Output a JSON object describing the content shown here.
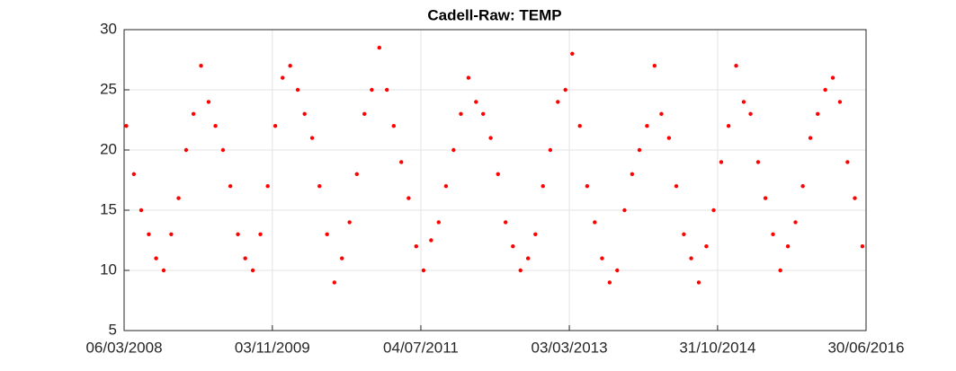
{
  "chart_data": {
    "type": "scatter",
    "title": "Cadell-Raw: TEMP",
    "x": [
      "2008-03-15",
      "2008-04-15",
      "2008-05-15",
      "2008-06-15",
      "2008-07-15",
      "2008-08-15",
      "2008-09-15",
      "2008-10-15",
      "2008-11-15",
      "2008-12-15",
      "2009-01-15",
      "2009-02-15",
      "2009-03-15",
      "2009-04-15",
      "2009-05-15",
      "2009-06-15",
      "2009-07-15",
      "2009-08-15",
      "2009-09-15",
      "2009-10-15",
      "2009-11-15",
      "2009-12-15",
      "2010-01-15",
      "2010-02-15",
      "2010-03-15",
      "2010-04-15",
      "2010-05-15",
      "2010-06-15",
      "2010-07-15",
      "2010-08-15",
      "2010-09-15",
      "2010-10-15",
      "2010-11-15",
      "2010-12-15",
      "2011-01-15",
      "2011-02-15",
      "2011-03-15",
      "2011-04-15",
      "2011-05-15",
      "2011-06-15",
      "2011-07-15",
      "2011-08-15",
      "2011-09-15",
      "2011-10-15",
      "2011-11-15",
      "2011-12-15",
      "2012-01-15",
      "2012-02-15",
      "2012-03-15",
      "2012-04-15",
      "2012-05-15",
      "2012-06-15",
      "2012-07-15",
      "2012-08-15",
      "2012-09-15",
      "2012-10-15",
      "2012-11-15",
      "2012-12-15",
      "2013-01-15",
      "2013-02-15",
      "2013-03-15",
      "2013-04-15",
      "2013-05-15",
      "2013-06-15",
      "2013-07-15",
      "2013-08-15",
      "2013-09-15",
      "2013-10-15",
      "2013-11-15",
      "2013-12-15",
      "2014-01-15",
      "2014-02-15",
      "2014-03-15",
      "2014-04-15",
      "2014-05-15",
      "2014-06-15",
      "2014-07-15",
      "2014-08-15",
      "2014-09-15",
      "2014-10-15",
      "2014-11-15",
      "2014-12-15",
      "2015-01-15",
      "2015-02-15",
      "2015-03-15",
      "2015-04-15",
      "2015-05-15",
      "2015-06-15",
      "2015-07-15",
      "2015-08-15",
      "2015-09-15",
      "2015-10-15",
      "2015-11-15",
      "2015-12-15",
      "2016-01-15",
      "2016-02-15",
      "2016-03-15",
      "2016-04-15",
      "2016-05-15",
      "2016-06-15"
    ],
    "series": [
      {
        "name": "TEMP",
        "color": "#ff0000",
        "values": [
          22,
          18,
          15,
          13,
          11,
          10,
          13,
          16,
          20,
          23,
          27,
          24,
          22,
          20,
          17,
          13,
          11,
          10,
          13,
          17,
          22,
          26,
          27,
          25,
          23,
          21,
          17,
          13,
          9,
          11,
          14,
          18,
          23,
          25,
          28.5,
          25,
          22,
          19,
          16,
          12,
          10,
          12.5,
          14,
          17,
          20,
          23,
          26,
          24,
          23,
          21,
          18,
          14,
          12,
          10,
          11,
          13,
          17,
          20,
          24,
          25,
          28,
          22,
          17,
          14,
          11,
          9,
          10,
          15,
          18,
          20,
          22,
          27,
          23,
          21,
          17,
          13,
          11,
          9,
          12,
          15,
          19,
          22,
          27,
          24,
          23,
          19,
          16,
          13,
          10,
          12,
          14,
          17,
          21,
          23,
          25,
          26,
          24,
          19,
          16,
          12
        ]
      }
    ],
    "xlim": [
      "2008-03-06",
      "2016-06-30"
    ],
    "xticks": [
      {
        "value": "2008-03-06",
        "label": "06/03/2008"
      },
      {
        "value": "2009-11-03",
        "label": "03/11/2009"
      },
      {
        "value": "2011-07-04",
        "label": "04/07/2011"
      },
      {
        "value": "2013-03-03",
        "label": "03/03/2013"
      },
      {
        "value": "2014-10-31",
        "label": "31/10/2014"
      },
      {
        "value": "2016-06-30",
        "label": "30/06/2016"
      }
    ],
    "ylim": [
      5,
      30
    ],
    "yticks": [
      5,
      10,
      15,
      20,
      25,
      30
    ],
    "grid": true
  }
}
